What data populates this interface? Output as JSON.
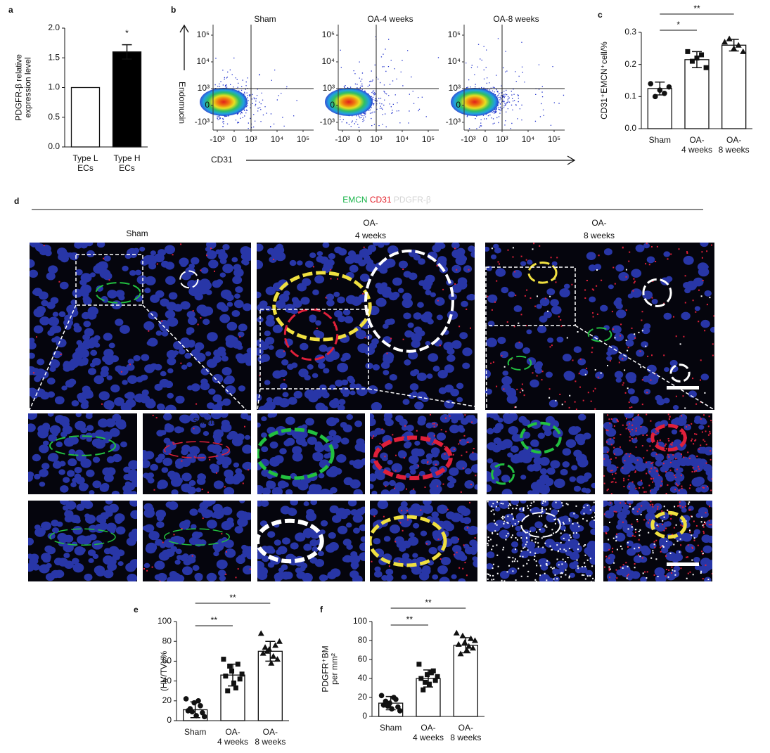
{
  "panel_labels": [
    "a",
    "b",
    "c",
    "d",
    "e",
    "f"
  ],
  "chart_data": [
    {
      "type": "bar",
      "ylabel": [
        "PDGFR-β relative",
        "expression level"
      ],
      "categories": [
        [
          "Type L",
          "ECs"
        ],
        [
          "Type H",
          "ECs"
        ]
      ],
      "values": [
        1.0,
        1.6
      ],
      "errors": [
        null,
        0.12
      ],
      "colors": [
        "#ffffff",
        "#000000"
      ],
      "ylim": [
        0,
        2
      ],
      "yticks": [
        {
          "value": 0,
          "label": "0.0"
        },
        0.5,
        {
          "value": 1,
          "label": "1.0"
        },
        1.5,
        {
          "value": 2,
          "label": "2.0"
        }
      ],
      "significance": [
        {
          "from": 1,
          "to": 1,
          "label": "*"
        }
      ]
    },
    {
      "type": "bar",
      "ylabel": [
        "CD31⁺EMCN⁺cell/%"
      ],
      "categories": [
        [
          "Sham"
        ],
        [
          "OA-",
          "4 weeks"
        ],
        [
          "OA-",
          "8 weeks"
        ]
      ],
      "values": [
        0.125,
        0.215,
        0.26
      ],
      "errors": [
        0.02,
        0.025,
        0.018
      ],
      "colors": [
        "#ffffff",
        "#ffffff",
        "#ffffff"
      ],
      "points": [
        [
          0.14,
          0.12,
          0.13,
          0.1,
          0.11
        ],
        [
          0.24,
          0.22,
          0.19,
          0.21,
          0.23
        ],
        [
          0.27,
          0.25,
          0.24,
          0.28,
          0.26
        ]
      ],
      "markers": [
        "circle",
        "square",
        "triangle"
      ],
      "ylim": [
        0,
        0.3
      ],
      "yticks": [
        {
          "value": 0,
          "label": "0.0"
        },
        0.1,
        0.2,
        0.3
      ],
      "significance": [
        {
          "from": 0,
          "to": 1,
          "label": "*"
        },
        {
          "from": 0,
          "to": 2,
          "label": "**"
        }
      ]
    },
    {
      "type": "bar",
      "ylabel": [
        "(HV/TV)/%"
      ],
      "categories": [
        [
          "Sham"
        ],
        [
          "OA-",
          "4 weeks"
        ],
        [
          "OA-",
          "8 weeks"
        ]
      ],
      "values": [
        11,
        46,
        70
      ],
      "errors": [
        8,
        11,
        10
      ],
      "colors": [
        "#ffffff",
        "#ffffff",
        "#ffffff"
      ],
      "points": [
        [
          22,
          15,
          18,
          10,
          8,
          5,
          12,
          4,
          20,
          9
        ],
        [
          62,
          57,
          50,
          45,
          42,
          38,
          30,
          47,
          33,
          55
        ],
        [
          88,
          76,
          72,
          68,
          62,
          58,
          74,
          80,
          65,
          70
        ]
      ],
      "markers": [
        "circle",
        "square",
        "triangle"
      ],
      "ylim": [
        0,
        100
      ],
      "yticks": [
        0,
        20,
        40,
        60,
        80,
        100
      ],
      "significance": [
        {
          "from": 0,
          "to": 1,
          "label": "**"
        },
        {
          "from": 0,
          "to": 2,
          "label": "**"
        }
      ]
    },
    {
      "type": "bar",
      "ylabel": [
        "PDGFR⁺BM",
        "per mm²"
      ],
      "categories": [
        [
          "Sham"
        ],
        [
          "OA-",
          "4 weeks"
        ],
        [
          "OA-",
          "8 weeks"
        ]
      ],
      "values": [
        14,
        40,
        75
      ],
      "errors": [
        7,
        9,
        8
      ],
      "colors": [
        "#ffffff",
        "#ffffff",
        "#ffffff"
      ],
      "points": [
        [
          22,
          18,
          14,
          12,
          10,
          8,
          16,
          6,
          20,
          11
        ],
        [
          55,
          48,
          44,
          40,
          38,
          34,
          28,
          42,
          46,
          36
        ],
        [
          88,
          82,
          78,
          76,
          72,
          70,
          66,
          80,
          74,
          85
        ]
      ],
      "markers": [
        "circle",
        "square",
        "triangle"
      ],
      "ylim": [
        0,
        100
      ],
      "yticks": [
        0,
        20,
        40,
        60,
        80,
        100
      ],
      "significance": [
        {
          "from": 0,
          "to": 1,
          "label": "**"
        },
        {
          "from": 0,
          "to": 2,
          "label": "**"
        }
      ]
    }
  ],
  "flow": {
    "type": "density",
    "titles": [
      "Sham",
      "OA-4 weeks",
      "OA-8 weeks"
    ],
    "xlabel": "CD31",
    "ylabel": "Endomucin",
    "xticks": [
      {
        "value": -1000,
        "label": "-10³"
      },
      0,
      {
        "value": 1000,
        "label": "10³"
      },
      {
        "value": 10000,
        "label": "10⁴"
      },
      {
        "value": 100000,
        "label": "10⁵"
      }
    ],
    "yticks": [
      {
        "value": -1000,
        "label": "-10³"
      },
      0,
      {
        "value": 1000,
        "label": "10³"
      },
      {
        "value": 10000,
        "label": "10⁴"
      },
      {
        "value": 100000,
        "label": "10⁵"
      }
    ],
    "gate": [
      1000,
      1000
    ]
  },
  "figure_d": {
    "legend": [
      {
        "text": "EMCN",
        "color": "#19b44a"
      },
      {
        "text": "CD31",
        "color": "#e3202a"
      },
      {
        "text": "PDGFR-β",
        "color": "#d4d4d4"
      }
    ],
    "titles": [
      [
        "Sham"
      ],
      [
        "OA-",
        "4 weeks"
      ],
      [
        "OA-",
        "8 weeks"
      ]
    ],
    "inset_title": "Sham"
  }
}
